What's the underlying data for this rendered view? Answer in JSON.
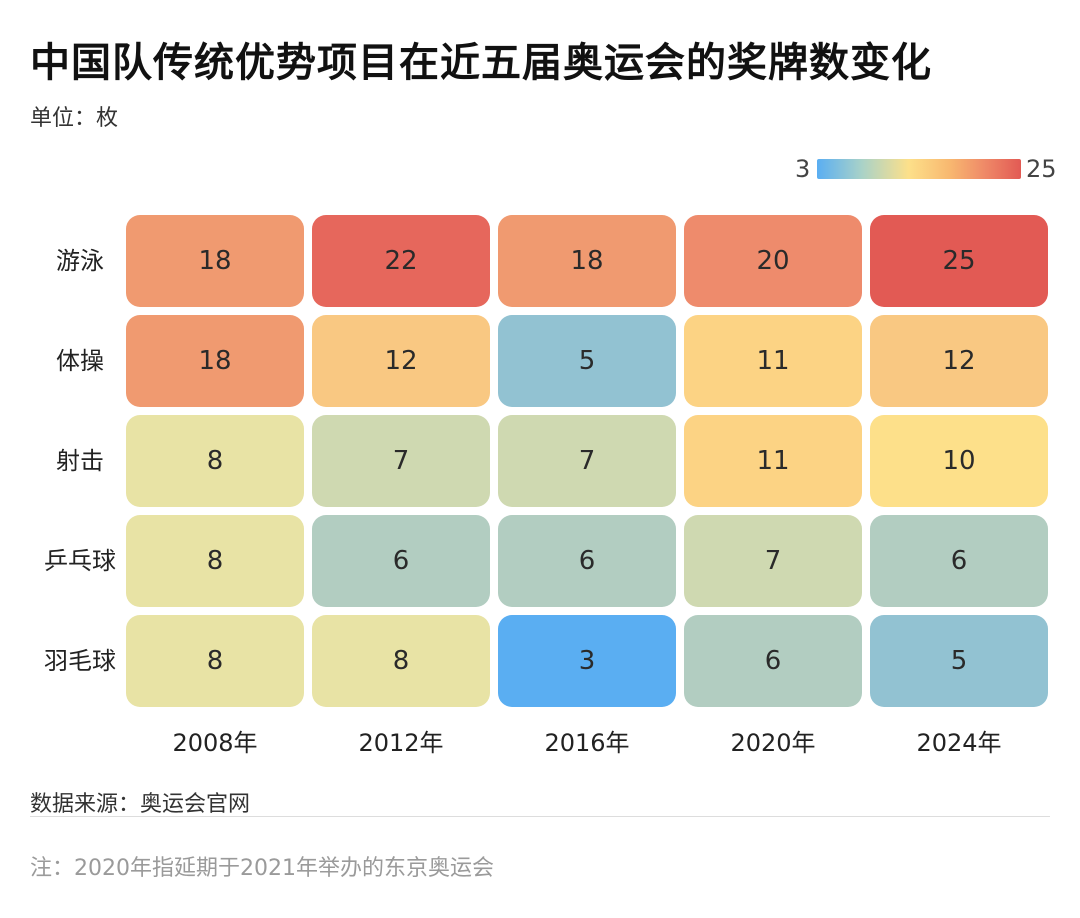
{
  "header": {
    "title": "中国队传统优势项目在近五届奥运会的奖牌数变化",
    "unit": "单位：枚"
  },
  "legend": {
    "min_label": "3",
    "max_label": "25"
  },
  "chart_data": {
    "type": "heatmap",
    "title": "中国队传统优势项目在近五届奥运会的奖牌数变化",
    "unit": "单位：枚",
    "rows": [
      "游泳",
      "体操",
      "射击",
      "乒乓球",
      "羽毛球"
    ],
    "columns": [
      "2008年",
      "2012年",
      "2016年",
      "2020年",
      "2024年"
    ],
    "values": [
      [
        18,
        22,
        18,
        20,
        25
      ],
      [
        18,
        12,
        5,
        11,
        12
      ],
      [
        8,
        7,
        7,
        11,
        10
      ],
      [
        8,
        6,
        6,
        7,
        6
      ],
      [
        8,
        8,
        3,
        6,
        5
      ]
    ],
    "color_range": [
      3,
      25
    ],
    "colors": {
      "3": "#5aaef2",
      "5": "#92c2d2",
      "6": "#b2cdc1",
      "7": "#cfd9b1",
      "8": "#e8e3a5",
      "10": "#fde08a",
      "11": "#fcd384",
      "12": "#f9c882",
      "18": "#f09a70",
      "20": "#ee8b6c",
      "22": "#e6675c",
      "25": "#e25a54"
    }
  },
  "footer": {
    "source": "数据来源：奥运会官网",
    "note": "注：2020年指延期于2021年举办的东京奥运会"
  }
}
